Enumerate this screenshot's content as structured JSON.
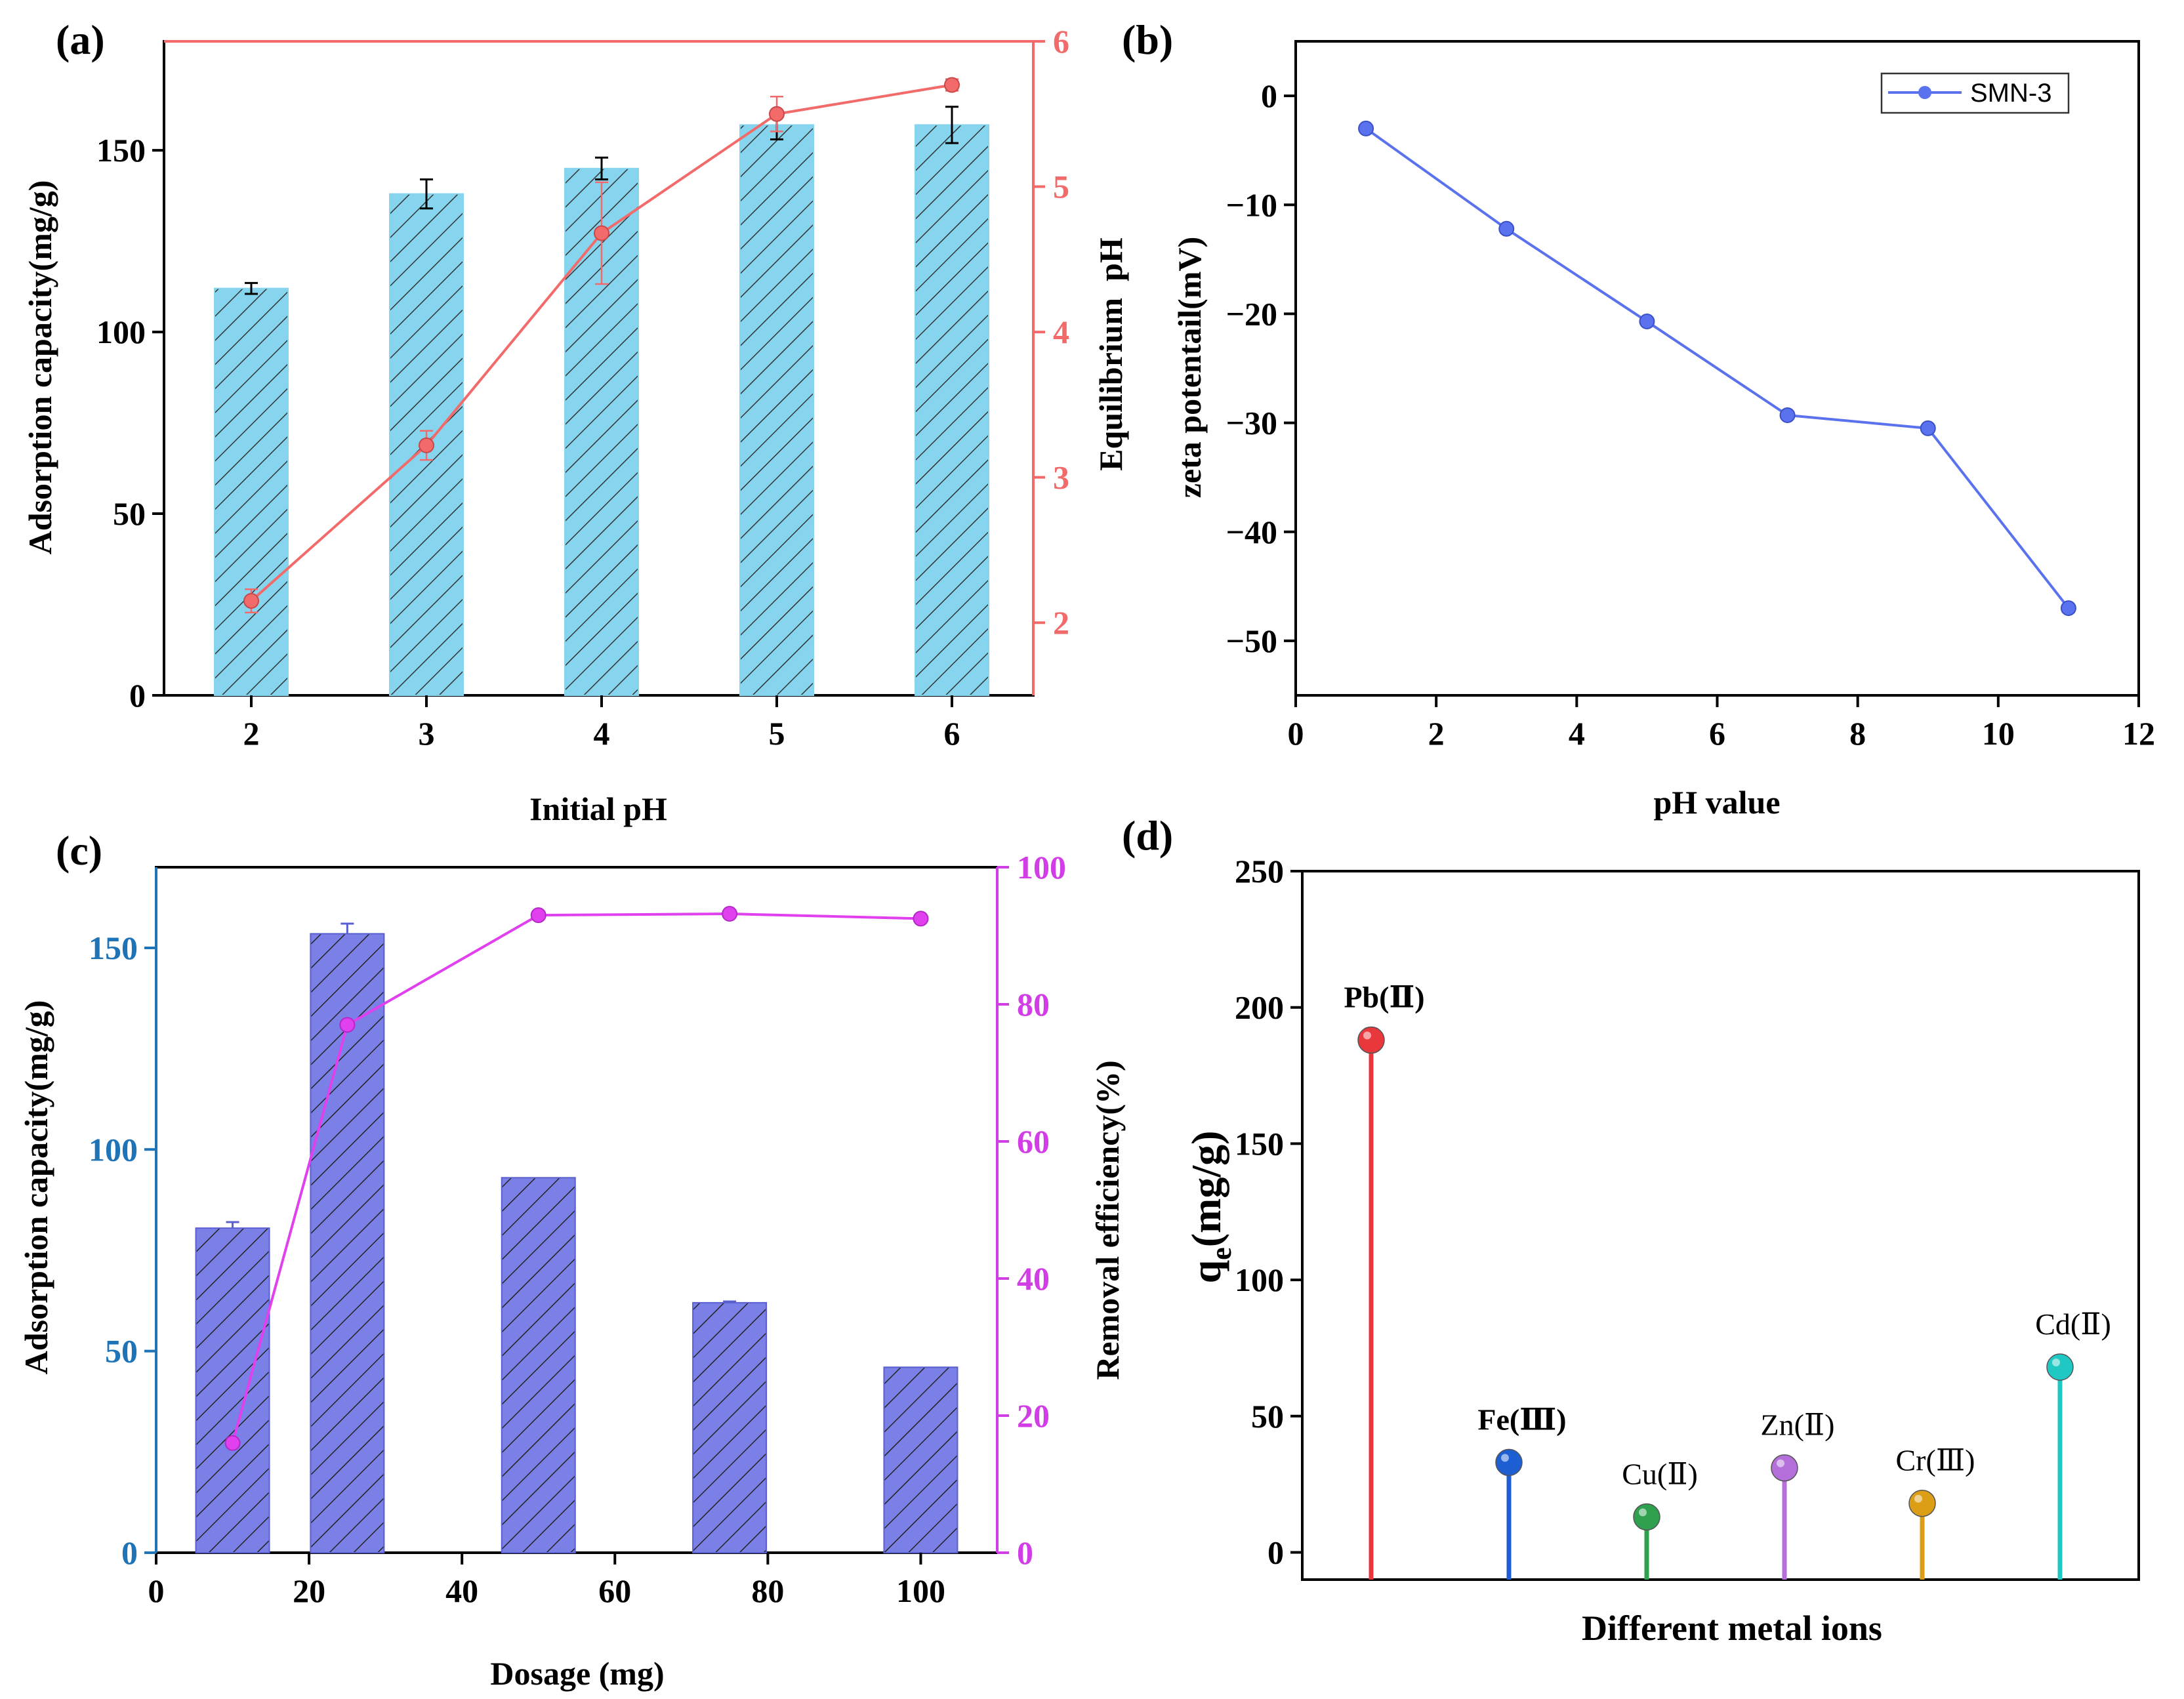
{
  "chart_data": [
    {
      "panel": "(a)",
      "type": "bar",
      "categories": [
        "2",
        "3",
        "4",
        "5",
        "6"
      ],
      "xlabel": "Initial pH",
      "ylabel": "Adsorption capacity(mg/g)",
      "ylim": [
        0,
        180
      ],
      "yticks": [
        "0",
        "50",
        "100",
        "150"
      ],
      "series": [
        {
          "name": "Adsorption capacity",
          "values": [
            112,
            138,
            145,
            157,
            157
          ],
          "errors": [
            1.5,
            4,
            3,
            4,
            5
          ],
          "color": "#86d4ee"
        },
        {
          "name": "Equilibrium pH",
          "axis": "right",
          "type": "line",
          "values": [
            2.15,
            3.22,
            4.68,
            5.5,
            5.7
          ],
          "errors": [
            0.08,
            0.1,
            0.35,
            0.12,
            0.04
          ],
          "color": "#f26a6a"
        }
      ],
      "y2label": "Equilibrium  pH",
      "y2lim": [
        1.5,
        6
      ],
      "y2ticks": [
        "2",
        "3",
        "4",
        "5",
        "6"
      ]
    },
    {
      "panel": "(b)",
      "type": "line",
      "x": [
        1,
        3,
        5,
        7,
        9,
        11
      ],
      "series": [
        {
          "name": "SMN-3",
          "values": [
            -3,
            -12.2,
            -20.7,
            -29.3,
            -30.5,
            -47
          ],
          "color": "#5b72ee"
        }
      ],
      "xlabel": "pH value",
      "ylabel": "zeta potentail(mV)",
      "xlim": [
        0,
        12
      ],
      "ylim": [
        -55,
        5
      ],
      "xticks": [
        "0",
        "2",
        "4",
        "6",
        "8",
        "10",
        "12"
      ],
      "yticks": [
        "0",
        "−10",
        "−20",
        "−30",
        "−40",
        "−50"
      ],
      "legend": "top-right"
    },
    {
      "panel": "(c)",
      "type": "bar",
      "x": [
        10,
        25,
        50,
        75,
        100
      ],
      "xlabel": "Dosage (mg)",
      "ylabel": "Adsorption capacity(mg/g)",
      "xlim": [
        0,
        110
      ],
      "ylim": [
        0,
        170
      ],
      "xticks": [
        "0",
        "20",
        "40",
        "60",
        "80",
        "100"
      ],
      "yticks": [
        "0",
        "50",
        "100",
        "150"
      ],
      "series": [
        {
          "name": "Adsorption capacity",
          "values": [
            80.5,
            153.5,
            93,
            62,
            46
          ],
          "errors": [
            1.5,
            2.5,
            0,
            0.3,
            0
          ],
          "color": "#7b80e6"
        },
        {
          "name": "Removal efficiency",
          "axis": "right",
          "type": "line",
          "values": [
            16,
            77,
            93,
            93.2,
            92.5
          ],
          "color": "#e040ee"
        }
      ],
      "y2label": "Removal efficiency(%)",
      "y2lim": [
        0,
        100
      ],
      "y2ticks": [
        "0",
        "20",
        "40",
        "60",
        "80",
        "100"
      ]
    },
    {
      "panel": "(d)",
      "type": "bar",
      "categories": [
        "Pb(Ⅱ)",
        "Fe(Ⅲ)",
        "Cu(Ⅱ)",
        "Zn(Ⅱ)",
        "Cr(Ⅲ)",
        "Cd(Ⅱ)"
      ],
      "values": [
        188,
        33,
        13,
        31,
        18,
        68
      ],
      "colors": [
        "#e8383c",
        "#1d5fd2",
        "#2ea04e",
        "#b46fdb",
        "#dc9e14",
        "#20c8c4"
      ],
      "xlabel": "Different metal ions",
      "ylabel": "qe(mg/g)",
      "ylim": [
        -10,
        250
      ],
      "yticks": [
        "0",
        "50",
        "100",
        "150",
        "200",
        "250"
      ]
    }
  ]
}
